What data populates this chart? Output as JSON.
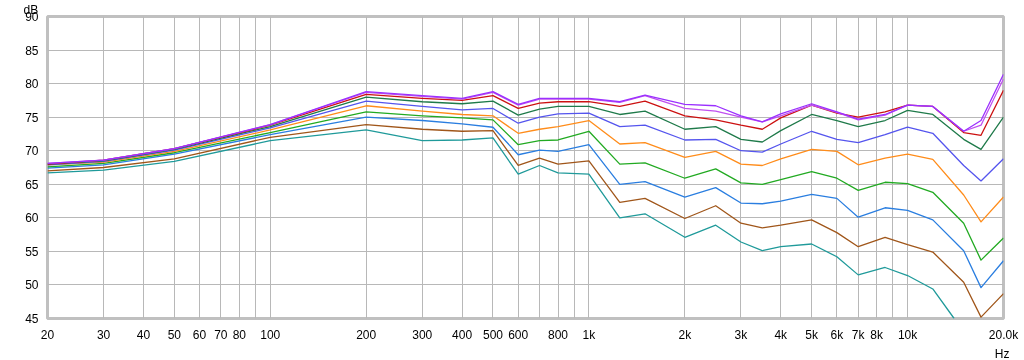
{
  "chart_data": {
    "type": "line",
    "xlabel": "Hz",
    "ylabel": "dB",
    "log": "x",
    "grid": true,
    "x": [
      20,
      30,
      50,
      100,
      200,
      300,
      400,
      500,
      600,
      700,
      800,
      1000,
      1250,
      1500,
      2000,
      2500,
      3000,
      3500,
      4000,
      5000,
      6000,
      7000,
      8500,
      10000,
      12000,
      15000,
      17000,
      20000
    ],
    "xlim": [
      20,
      20000
    ],
    "ylim": [
      45,
      90
    ],
    "xticks": [
      20,
      30,
      40,
      50,
      60,
      70,
      80,
      {
        "value": 90,
        "label": null
      },
      100,
      200,
      300,
      400,
      500,
      600,
      {
        "value": 700,
        "label": null
      },
      800,
      {
        "value": 900,
        "label": null
      },
      {
        "value": 1000,
        "label": "1k"
      },
      {
        "value": 2000,
        "label": "2k"
      },
      {
        "value": 3000,
        "label": "3k"
      },
      {
        "value": 4000,
        "label": "4k"
      },
      {
        "value": 5000,
        "label": "5k"
      },
      {
        "value": 6000,
        "label": "6k"
      },
      {
        "value": 7000,
        "label": "7k"
      },
      {
        "value": 8000,
        "label": "8k"
      },
      {
        "value": 9000,
        "label": null
      },
      {
        "value": 10000,
        "label": "10k"
      },
      {
        "value": 20000,
        "label": "20.0k"
      }
    ],
    "yticks": [
      45,
      50,
      55,
      60,
      65,
      70,
      75,
      80,
      85,
      90
    ],
    "series": [
      {
        "color": "#1f9a9a",
        "x": [
          20,
          30,
          50,
          100,
          200,
          300,
          400,
          500,
          600,
          700,
          800,
          1000,
          1250,
          1500,
          2000,
          2500,
          3000,
          3500,
          4000,
          5000,
          6000,
          7000,
          8500,
          10000,
          12000,
          14000
        ],
        "values": [
          66.7,
          67.1,
          68.4,
          71.5,
          73.1,
          71.5,
          71.6,
          71.9,
          66.5,
          67.8,
          66.7,
          66.5,
          60.0,
          60.6,
          57.1,
          58.9,
          56.4,
          55.1,
          55.7,
          56.1,
          54.2,
          51.5,
          52.6,
          51.4,
          49.4,
          45.0
        ]
      },
      {
        "color": "#a0561a",
        "values": [
          67.0,
          67.5,
          68.8,
          72.0,
          73.9,
          73.2,
          72.9,
          73.0,
          67.8,
          68.9,
          68.0,
          68.5,
          62.3,
          62.9,
          59.9,
          61.8,
          59.2,
          58.5,
          58.9,
          59.7,
          57.8,
          55.7,
          57.1,
          56.0,
          54.9,
          50.4,
          45.2,
          48.7
        ]
      },
      {
        "color": "#2a7ee0",
        "values": [
          67.4,
          67.9,
          69.5,
          72.4,
          75.0,
          74.5,
          74.0,
          73.5,
          69.4,
          70.1,
          69.9,
          70.9,
          65.0,
          65.4,
          63.1,
          64.5,
          62.2,
          62.1,
          62.5,
          63.5,
          62.9,
          60.1,
          61.5,
          61.1,
          59.7,
          55.1,
          49.6,
          53.6
        ]
      },
      {
        "color": "#22aa22",
        "values": [
          67.6,
          68.1,
          69.7,
          72.7,
          75.8,
          75.2,
          74.9,
          74.6,
          70.9,
          71.5,
          71.6,
          72.9,
          68.0,
          68.2,
          65.9,
          67.3,
          65.2,
          65.0,
          65.7,
          66.9,
          65.9,
          64.1,
          65.3,
          65.1,
          63.8,
          59.2,
          53.7,
          57.0
        ]
      },
      {
        "color": "#ff8c1a",
        "values": [
          67.9,
          68.3,
          69.9,
          73.1,
          76.7,
          75.9,
          75.4,
          75.2,
          72.6,
          73.2,
          73.6,
          74.5,
          71.0,
          71.2,
          69.0,
          69.9,
          68.0,
          67.8,
          68.8,
          70.2,
          69.9,
          67.9,
          68.9,
          69.5,
          68.7,
          63.4,
          59.4,
          63.1
        ]
      },
      {
        "color": "#5555ee",
        "values": [
          67.9,
          68.4,
          70.1,
          73.4,
          77.4,
          76.6,
          76.1,
          76.3,
          74.1,
          75.0,
          75.5,
          75.6,
          73.6,
          73.8,
          71.6,
          71.7,
          70.0,
          69.8,
          71.0,
          72.9,
          71.7,
          71.2,
          72.4,
          73.5,
          72.6,
          67.8,
          65.5,
          68.8
        ]
      },
      {
        "color": "#1f7a4a",
        "values": [
          68.0,
          68.5,
          70.2,
          73.6,
          78.0,
          77.3,
          77.0,
          77.4,
          75.3,
          76.2,
          76.6,
          76.6,
          75.4,
          75.9,
          73.2,
          73.6,
          71.7,
          71.3,
          73.0,
          75.4,
          74.5,
          73.6,
          74.5,
          76.0,
          75.4,
          71.7,
          70.2,
          75.0
        ]
      },
      {
        "color": "#cc1111",
        "values": [
          68.0,
          68.6,
          70.3,
          73.8,
          78.4,
          77.8,
          77.5,
          78.2,
          76.3,
          77.1,
          77.3,
          77.3,
          76.6,
          77.4,
          75.2,
          74.6,
          73.8,
          73.2,
          74.9,
          76.8,
          75.6,
          75.0,
          75.8,
          76.8,
          76.6,
          72.7,
          72.3,
          79.0
        ]
      },
      {
        "color": "#c050f0",
        "values": [
          68.1,
          68.6,
          70.3,
          73.9,
          78.7,
          78.1,
          77.7,
          78.7,
          76.8,
          77.7,
          77.7,
          77.7,
          77.2,
          78.2,
          76.3,
          75.9,
          75.0,
          74.3,
          75.2,
          76.8,
          75.7,
          74.6,
          75.3,
          76.8,
          76.6,
          72.9,
          73.8,
          80.7
        ]
      },
      {
        "color": "#9b30ff",
        "values": [
          68.1,
          68.6,
          70.3,
          73.9,
          78.8,
          78.2,
          77.8,
          78.8,
          76.9,
          77.8,
          77.8,
          77.8,
          77.3,
          78.3,
          76.9,
          76.7,
          75.2,
          74.3,
          75.5,
          77.0,
          75.8,
          74.7,
          75.4,
          76.8,
          76.6,
          72.9,
          74.5,
          81.4
        ]
      }
    ]
  }
}
